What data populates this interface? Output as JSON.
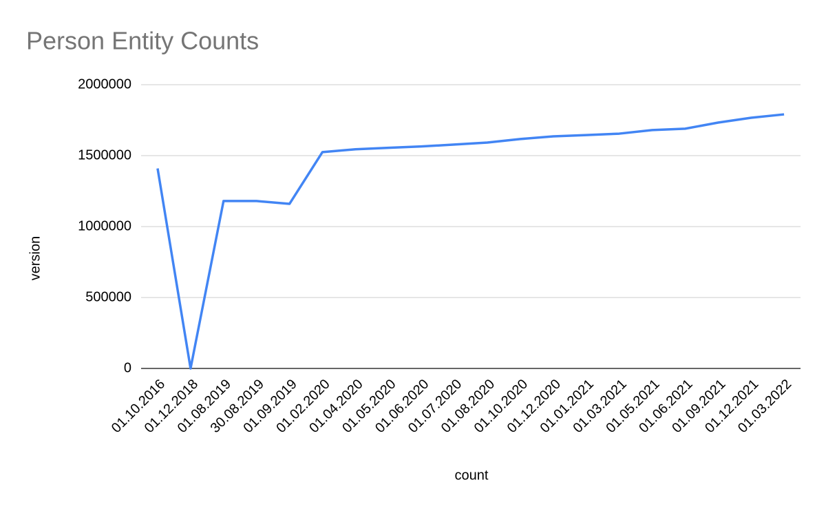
{
  "chart_data": {
    "type": "line",
    "title": "Person Entity Counts",
    "x_label": "count",
    "y_label": "version",
    "categories": [
      "01.10.2016",
      "01.12.2018",
      "01.08.2019",
      "30.08.2019",
      "01.09.2019",
      "01.02.2020",
      "01.04.2020",
      "01.05.2020",
      "01.06.2020",
      "01.07.2020",
      "01.08.2020",
      "01.10.2020",
      "01.12.2020",
      "01.01.2021",
      "01.03.2021",
      "01.05.2021",
      "01.06.2021",
      "01.09.2021",
      "01.12.2021",
      "01.03.2022"
    ],
    "values": [
      1410000,
      0,
      1180000,
      1180000,
      1160000,
      1525000,
      1545000,
      1555000,
      1565000,
      1578000,
      1592000,
      1617000,
      1636000,
      1645000,
      1655000,
      1680000,
      1690000,
      1733000,
      1767000,
      1791000
    ],
    "color": "#4285f4",
    "ylim": [
      0,
      2000000
    ],
    "yticks": [
      0,
      500000,
      1000000,
      1500000,
      2000000
    ],
    "grid": true
  }
}
